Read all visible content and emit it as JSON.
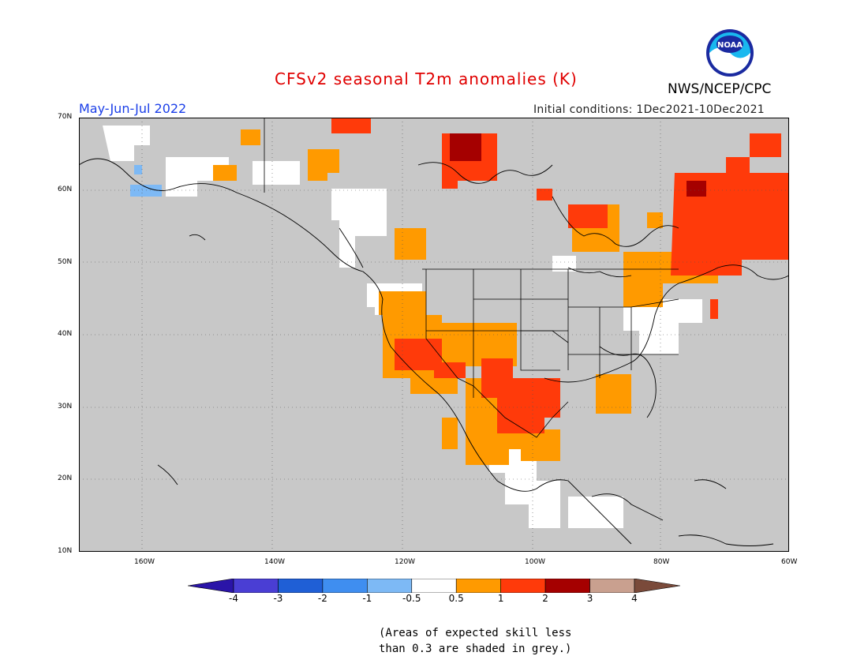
{
  "header": {
    "title": "CFSv2 seasonal T2m anomalies (K)",
    "period": "May-Jun-Jul 2022",
    "initial_conditions": "Initial conditions: 1Dec2021-10Dec2021",
    "agency": "NWS/NCEP/CPC",
    "logo_text": "NOAA"
  },
  "map": {
    "lat_labels": [
      "70N",
      "60N",
      "50N",
      "40N",
      "30N",
      "20N",
      "10N"
    ],
    "lon_labels": [
      "160W",
      "140W",
      "120W",
      "100W",
      "80W",
      "60W"
    ],
    "no_skill_color": "#c8c8c8"
  },
  "colorbar": {
    "labels": [
      "-4",
      "-3",
      "-2",
      "-1",
      "-0.5",
      "0.5",
      "1",
      "2",
      "3",
      "4"
    ],
    "colors": [
      "#2a14a8",
      "#4a3ed4",
      "#1f5fd6",
      "#3f8ef0",
      "#7db9f5",
      "#ffffff",
      "#ff9a00",
      "#ff3a0a",
      "#a50000",
      "#c9a08f",
      "#7a4a3a"
    ]
  },
  "note": {
    "line1": "(Areas of expected skill less",
    "line2": "than 0.3 are shaded in grey.)"
  }
}
